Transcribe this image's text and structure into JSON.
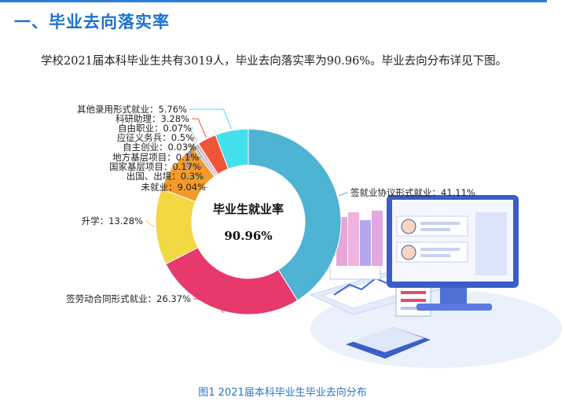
{
  "heading": "一、毕业去向落实率",
  "intro": "学校2021届本科毕业生共有3019人，毕业去向落实率为90.96%。毕业去向分布详见下图。",
  "caption": "图1 2021届本科毕业生毕业去向分布",
  "chart_data": {
    "type": "pie",
    "donut": true,
    "center_title": "毕业生就业率",
    "center_value": "90.96%",
    "slices": [
      {
        "label": "签就业协议形式就业",
        "value": 41.11,
        "display": "签就业协议形式就业：41.11%",
        "color": "#4fb3d4"
      },
      {
        "label": "签劳动合同形式就业",
        "value": 26.37,
        "display": "签劳动合同形式就业：26.37%",
        "color": "#e8396d"
      },
      {
        "label": "升学",
        "value": 13.28,
        "display": "升学：13.28%",
        "color": "#f2d842"
      },
      {
        "label": "未就业",
        "value": 9.04,
        "display": "未就业：9.04%",
        "color": "#f39a2b"
      },
      {
        "label": "出国、出境",
        "value": 0.3,
        "display": "出国、出境：0.3%",
        "color": "#7dc47a"
      },
      {
        "label": "国家基层项目",
        "value": 0.17,
        "display": "国家基层项目：0.17%",
        "color": "#a07ccf"
      },
      {
        "label": "地方基层项目",
        "value": 0.1,
        "display": "地方基层项目：0.1%",
        "color": "#5a7fd6"
      },
      {
        "label": "自主创业",
        "value": 0.03,
        "display": "自主创业：0.03%",
        "color": "#c9b07a"
      },
      {
        "label": "应征义务兵",
        "value": 0.5,
        "display": "应征义务兵：0.5%",
        "color": "#f0a3b8"
      },
      {
        "label": "自由职业",
        "value": 0.07,
        "display": "自由职业：0.07%",
        "color": "#9ad1c0"
      },
      {
        "label": "科研助理",
        "value": 3.28,
        "display": "科研助理：3.28%",
        "color": "#f0553a"
      },
      {
        "label": "其他录用形式就业",
        "value": 5.76,
        "display": "其他录用形式就业：5.76%",
        "color": "#43e0ec"
      }
    ]
  }
}
